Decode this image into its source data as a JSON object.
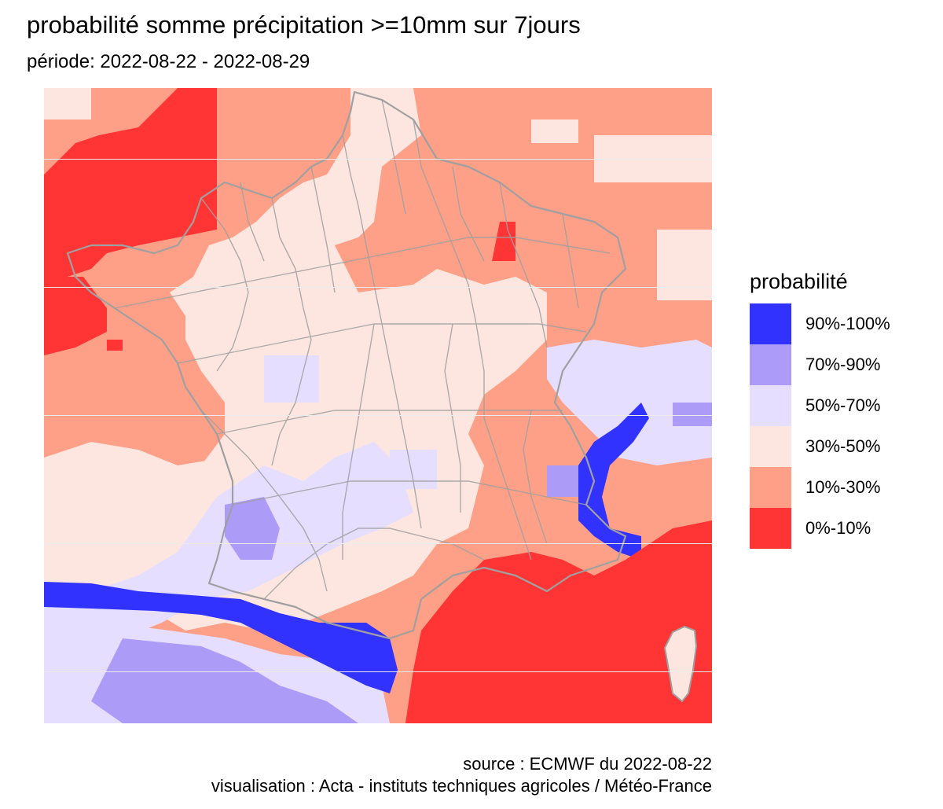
{
  "header": {
    "title": "probabilité somme précipitation >=10mm sur 7jours",
    "subtitle": "période: 2022-08-22 - 2022-08-29"
  },
  "legend": {
    "title": "probabilité",
    "items": [
      {
        "label": "90%-100%",
        "color": "#3232ff"
      },
      {
        "label": "70%-90%",
        "color": "#ac9cf8"
      },
      {
        "label": "50%-70%",
        "color": "#e5deff"
      },
      {
        "label": "30%-50%",
        "color": "#fde6df"
      },
      {
        "label": "10%-30%",
        "color": "#fe9f87"
      },
      {
        "label": "0%-10%",
        "color": "#ff3535"
      }
    ]
  },
  "map": {
    "region": "France",
    "boundaries": "départements",
    "background_color": "#fe9f87",
    "boundary_color": "#a0a0a0"
  },
  "footer": {
    "source": "source : ECMWF du 2022-08-22",
    "credit": "visualisation : Acta - instituts techniques agricoles / Météo-France"
  }
}
